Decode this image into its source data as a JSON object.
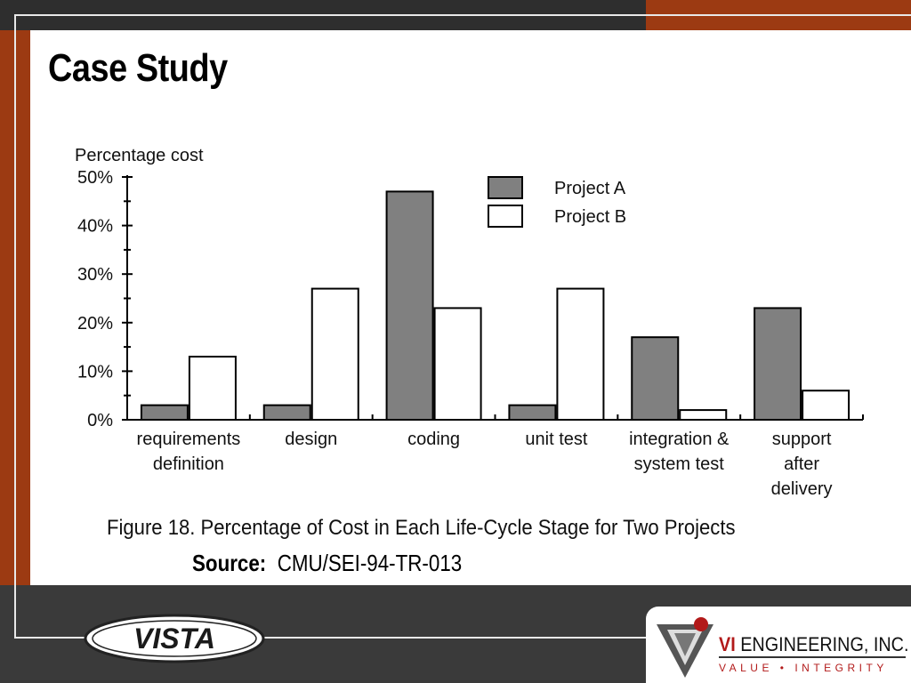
{
  "slide": {
    "title": "Case Study",
    "caption": "Figure 18.  Percentage of Cost in Each Life-Cycle Stage for Two Projects",
    "source_label": "Source:",
    "source_value": "CMU/SEI-94-TR-013"
  },
  "logos": {
    "vista": "VISTA",
    "company_vi": "VI",
    "company_name": "ENGINEERING, INC.",
    "company_tagline": "VALUE • INTEGRITY"
  },
  "colors": {
    "project_a": "#808080",
    "project_b": "#ffffff",
    "accent": "#9c3a12"
  },
  "chart_data": {
    "type": "bar",
    "ylabel": "Percentage cost",
    "xlabel": "",
    "ylim": [
      0,
      50
    ],
    "yticks": [
      "0%",
      "10%",
      "20%",
      "30%",
      "40%",
      "50%"
    ],
    "legend_position": "top-right",
    "categories": [
      [
        "requirements",
        "definition"
      ],
      [
        "design"
      ],
      [
        "coding"
      ],
      [
        "unit test"
      ],
      [
        "integration &",
        "system test"
      ],
      [
        "support",
        "after",
        "delivery"
      ]
    ],
    "series": [
      {
        "name": "Project A",
        "values": [
          3,
          3,
          47,
          3,
          17,
          23
        ]
      },
      {
        "name": "Project B",
        "values": [
          13,
          27,
          23,
          27,
          2,
          6
        ]
      }
    ]
  }
}
